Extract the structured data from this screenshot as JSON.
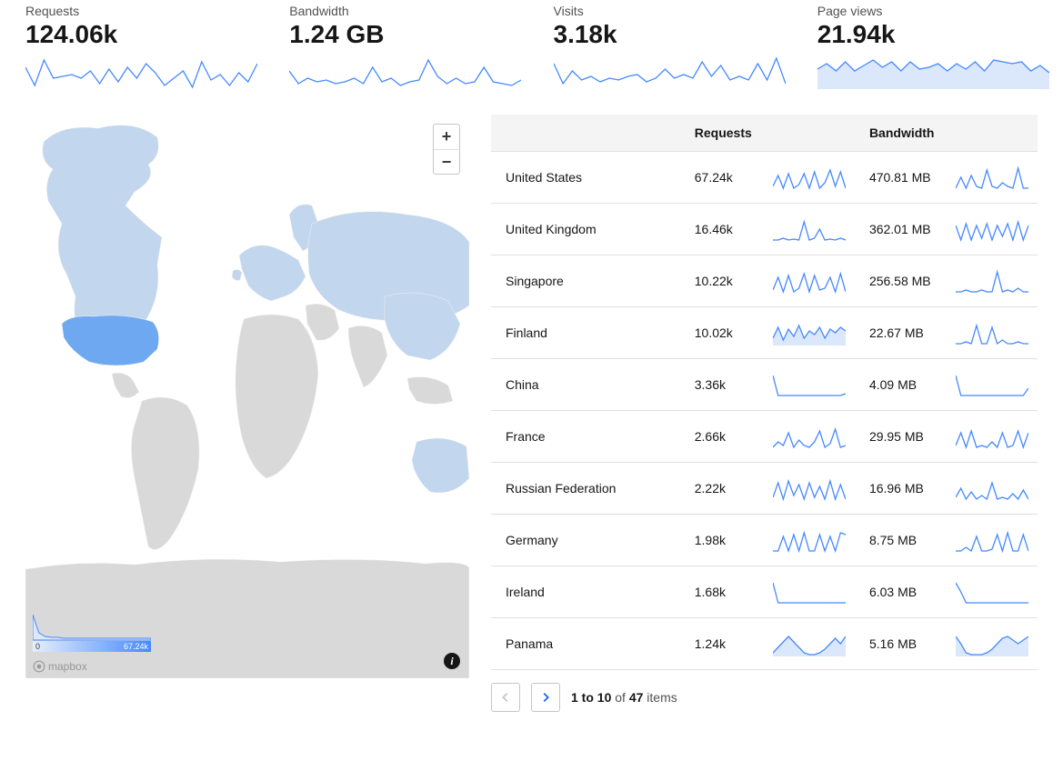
{
  "colors": {
    "spark_stroke": "#4589ff",
    "spark_fill": "#dbe7fa",
    "map_base": "#d9d9d9",
    "map_light": "#c2d6ed",
    "map_hot": "#6ea8f0",
    "grid": "#e0e0e0",
    "header_bg": "#f4f4f4",
    "text": "#161616",
    "text_muted": "#525252"
  },
  "metrics": [
    {
      "label": "Requests",
      "value": "124.06k",
      "spark": [
        18,
        38,
        10,
        30,
        28,
        26,
        30,
        22,
        36,
        20,
        34,
        18,
        30,
        14,
        24,
        38,
        30,
        22,
        40,
        12,
        32,
        26,
        38,
        24,
        34,
        14
      ]
    },
    {
      "label": "Bandwidth",
      "value": "1.24 GB",
      "spark": [
        22,
        36,
        30,
        34,
        32,
        36,
        34,
        30,
        36,
        18,
        34,
        30,
        38,
        34,
        32,
        10,
        28,
        36,
        30,
        36,
        34,
        18,
        34,
        36,
        38,
        32
      ]
    },
    {
      "label": "Visits",
      "value": "3.18k",
      "spark": [
        14,
        36,
        22,
        32,
        28,
        34,
        30,
        32,
        28,
        26,
        34,
        30,
        20,
        30,
        26,
        30,
        12,
        28,
        16,
        32,
        28,
        32,
        14,
        32,
        8,
        36
      ]
    },
    {
      "label": "Page views",
      "value": "21.94k",
      "spark_fill": true,
      "spark": [
        20,
        14,
        22,
        12,
        22,
        16,
        10,
        18,
        12,
        22,
        12,
        20,
        18,
        14,
        22,
        14,
        20,
        12,
        22,
        10,
        12,
        14,
        12,
        22,
        16,
        24
      ]
    }
  ],
  "table": {
    "columns": [
      "",
      "Requests",
      "",
      "Bandwidth",
      ""
    ],
    "rows": [
      {
        "country": "United States",
        "requests": "67.24k",
        "req_spark": [
          24,
          12,
          26,
          10,
          26,
          22,
          10,
          26,
          8,
          26,
          20,
          6,
          24,
          8,
          26
        ],
        "bandwidth": "470.81 MB",
        "bw_spark": [
          26,
          14,
          26,
          12,
          24,
          26,
          6,
          24,
          26,
          20,
          24,
          26,
          4,
          26,
          26
        ]
      },
      {
        "country": "United Kingdom",
        "requests": "16.46k",
        "req_spark": [
          26,
          26,
          24,
          26,
          25,
          26,
          6,
          26,
          24,
          14,
          26,
          25,
          26,
          24,
          26
        ],
        "bandwidth": "362.01 MB",
        "bw_spark": [
          10,
          26,
          8,
          26,
          10,
          24,
          8,
          26,
          10,
          22,
          8,
          26,
          6,
          26,
          10
        ]
      },
      {
        "country": "Singapore",
        "requests": "10.22k",
        "req_spark": [
          24,
          10,
          26,
          8,
          26,
          22,
          6,
          26,
          8,
          24,
          22,
          10,
          26,
          6,
          26
        ],
        "bandwidth": "256.58 MB",
        "bw_spark": [
          26,
          26,
          24,
          26,
          26,
          24,
          26,
          26,
          4,
          26,
          24,
          26,
          22,
          26,
          26
        ]
      },
      {
        "country": "Finland",
        "requests": "10.02k",
        "req_spark_fill": true,
        "req_spark": [
          20,
          8,
          22,
          10,
          18,
          6,
          20,
          12,
          16,
          8,
          20,
          10,
          14,
          8,
          12
        ],
        "bandwidth": "22.67 MB",
        "bw_spark": [
          26,
          26,
          24,
          26,
          6,
          26,
          26,
          8,
          26,
          22,
          26,
          26,
          24,
          26,
          26
        ]
      },
      {
        "country": "China",
        "requests": "3.36k",
        "req_spark": [
          4,
          26,
          26,
          26,
          26,
          26,
          26,
          26,
          26,
          26,
          26,
          26,
          26,
          26,
          24
        ],
        "bandwidth": "4.09 MB",
        "bw_spark": [
          4,
          26,
          26,
          26,
          26,
          26,
          26,
          26,
          26,
          26,
          26,
          26,
          26,
          26,
          18
        ]
      },
      {
        "country": "France",
        "requests": "2.66k",
        "req_spark": [
          26,
          20,
          24,
          10,
          26,
          18,
          24,
          26,
          20,
          8,
          26,
          22,
          6,
          26,
          24
        ],
        "bandwidth": "29.95 MB",
        "bw_spark": [
          24,
          10,
          26,
          8,
          26,
          24,
          26,
          20,
          26,
          10,
          26,
          24,
          8,
          26,
          10
        ]
      },
      {
        "country": "Russian Federation",
        "requests": "2.22k",
        "req_spark": [
          24,
          8,
          26,
          6,
          22,
          10,
          26,
          8,
          24,
          12,
          26,
          6,
          26,
          10,
          26
        ],
        "bandwidth": "16.96 MB",
        "bw_spark": [
          24,
          14,
          26,
          18,
          26,
          22,
          26,
          8,
          26,
          24,
          26,
          20,
          26,
          16,
          26
        ]
      },
      {
        "country": "Germany",
        "requests": "1.98k",
        "req_spark": [
          26,
          26,
          10,
          26,
          8,
          26,
          6,
          26,
          26,
          8,
          26,
          10,
          26,
          6,
          8
        ],
        "bandwidth": "8.75 MB",
        "bw_spark": [
          26,
          26,
          22,
          26,
          10,
          26,
          26,
          24,
          8,
          26,
          6,
          26,
          26,
          8,
          26
        ]
      },
      {
        "country": "Ireland",
        "requests": "1.68k",
        "req_spark": [
          4,
          26,
          26,
          26,
          26,
          26,
          26,
          26,
          26,
          26,
          26,
          26,
          26,
          26,
          26
        ],
        "bandwidth": "6.03 MB",
        "bw_spark": [
          4,
          14,
          26,
          26,
          26,
          26,
          26,
          26,
          26,
          26,
          26,
          26,
          26,
          26,
          26
        ]
      },
      {
        "country": "Panama",
        "requests": "1.24k",
        "req_spark_fill": true,
        "req_spark": [
          24,
          18,
          12,
          6,
          12,
          18,
          24,
          26,
          26,
          24,
          20,
          14,
          8,
          14,
          6
        ],
        "bandwidth": "5.16 MB",
        "bw_spark_fill": true,
        "bw_spark": [
          6,
          14,
          24,
          26,
          26,
          26,
          24,
          20,
          14,
          8,
          6,
          10,
          14,
          10,
          6
        ]
      }
    ]
  },
  "pager": {
    "range": "1 to 10",
    "of_label": "of",
    "total": "47",
    "items_label": "items"
  },
  "map": {
    "legend_min": "0",
    "legend_max": "67.24k",
    "attribution": "mapbox",
    "zoom_in": "+",
    "zoom_out": "−",
    "info": "i",
    "legend_spark": [
      2,
      22,
      26,
      27,
      27,
      28,
      28,
      28,
      28,
      28,
      28,
      28,
      28,
      28,
      28,
      28,
      28,
      28,
      28,
      28
    ]
  }
}
